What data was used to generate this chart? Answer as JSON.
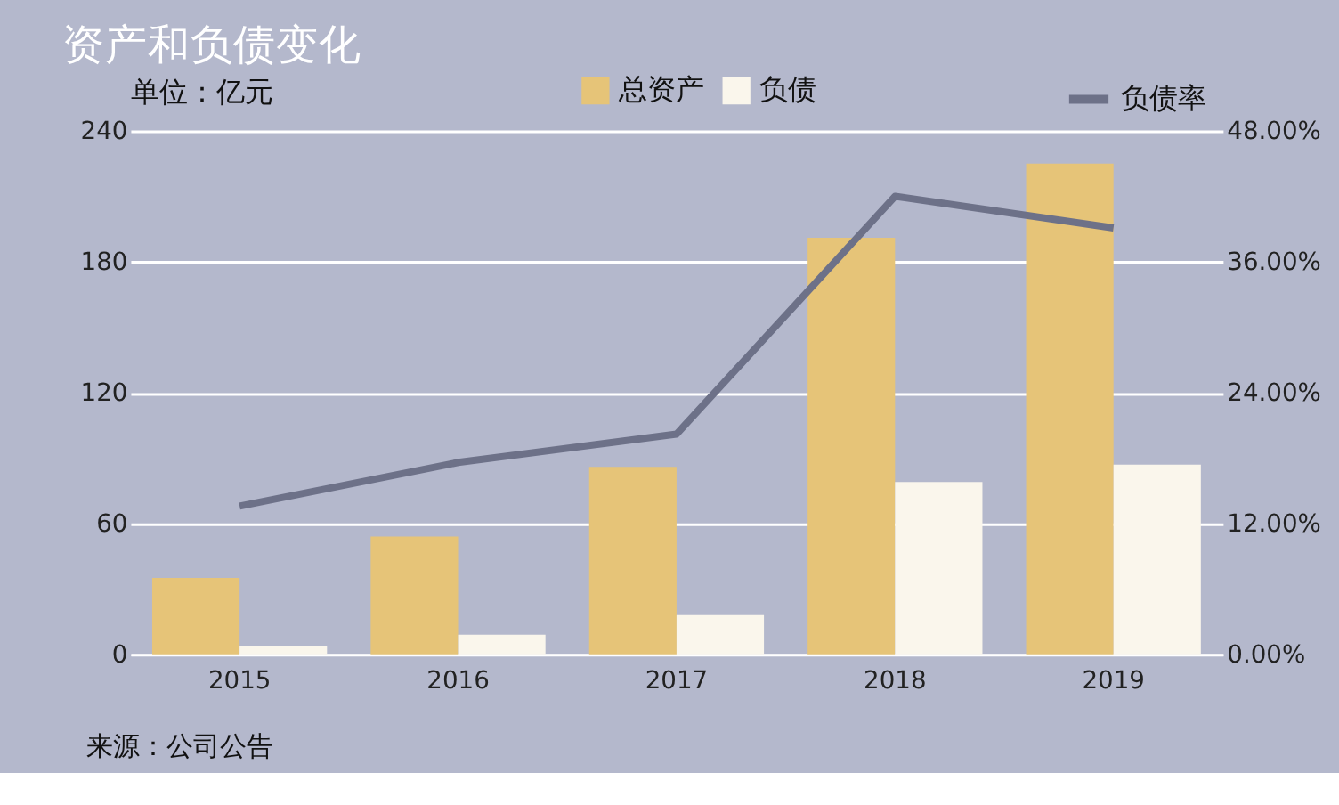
{
  "chart_data": {
    "type": "bar",
    "title": "资产和负债变化",
    "ylabel": "单位：亿元",
    "categories": [
      "2015",
      "2016",
      "2017",
      "2018",
      "2019"
    ],
    "series": [
      {
        "name": "总资产",
        "color": "#e6c478",
        "values": [
          35,
          54,
          86,
          191,
          225
        ]
      },
      {
        "name": "负债",
        "color": "#faf6ec",
        "values": [
          4,
          9,
          18,
          79,
          87
        ]
      },
      {
        "name": "负债率",
        "type": "line",
        "axis": "y2",
        "color": "#6d7188",
        "values": [
          13.6,
          17.6,
          20.2,
          42.0,
          39.1
        ]
      }
    ],
    "ylim": [
      0,
      240
    ],
    "yticks": [
      0,
      60,
      120,
      180,
      240
    ],
    "y2lim": [
      0,
      48
    ],
    "y2ticks": [
      {
        "value": 0,
        "label": "0.00%"
      },
      {
        "value": 12,
        "label": "12.00%"
      },
      {
        "value": 24,
        "label": "24.00%"
      },
      {
        "value": 36,
        "label": "36.00%"
      },
      {
        "value": 48,
        "label": "48.00%"
      }
    ],
    "grid": "y",
    "legend": "top right",
    "annotations": [
      "来源：公司公告"
    ]
  }
}
